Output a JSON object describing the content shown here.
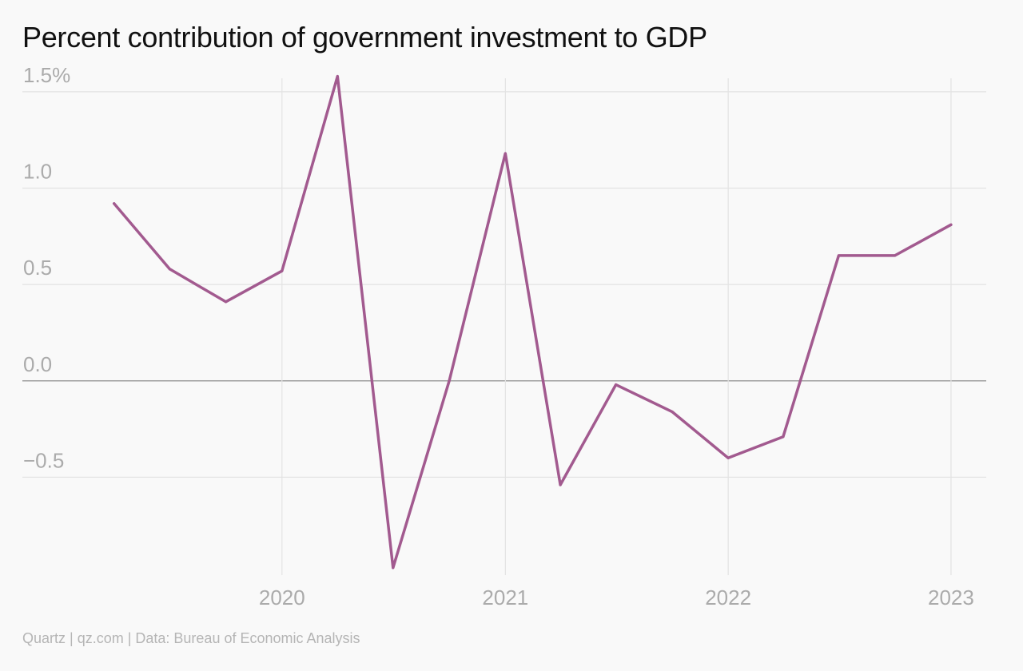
{
  "title": "Percent contribution of government investment to GDP",
  "source": "Quartz | qz.com | Data: Bureau of Economic Analysis",
  "colors": {
    "line": "#a25a8f",
    "grid": "#e3e3e3",
    "zero_line": "#9e9e9e",
    "tick_text": "#ababab",
    "background": "#f9f9f9"
  },
  "chart_data": {
    "type": "line",
    "title": "Percent contribution of government investment to GDP",
    "xlabel": "",
    "ylabel": "",
    "x_ticks": [
      "2020",
      "2021",
      "2022",
      "2023"
    ],
    "y_ticks": [
      "1.5%",
      "1.0",
      "0.5",
      "0.0",
      "−0.5"
    ],
    "y_tick_values": [
      1.5,
      1.0,
      0.5,
      0.0,
      -0.5
    ],
    "ylim": [
      -1.0,
      1.57
    ],
    "xlim": [
      "2019-01-01",
      "2023-03-01"
    ],
    "grid": true,
    "series": [
      {
        "x": [
          "2019-04-01",
          "2019-07-01",
          "2019-10-01",
          "2020-01-01",
          "2020-04-01",
          "2020-07-01",
          "2020-10-01",
          "2021-01-01",
          "2021-04-01",
          "2021-07-01",
          "2021-10-01",
          "2022-01-01",
          "2022-04-01",
          "2022-07-01",
          "2022-10-01",
          "2023-01-01"
        ],
        "values": [
          0.92,
          0.58,
          0.41,
          0.57,
          1.58,
          -0.97,
          0.0,
          1.18,
          -0.54,
          -0.02,
          -0.16,
          -0.4,
          -0.29,
          0.65,
          0.65,
          0.81
        ]
      }
    ]
  }
}
